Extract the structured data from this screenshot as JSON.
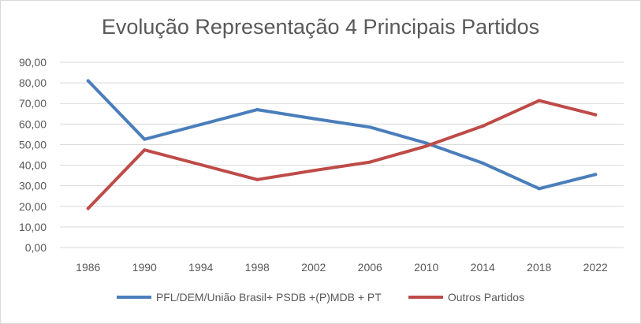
{
  "chart_data": {
    "type": "line",
    "title": "Evolução Representação 4 Principais Partidos",
    "xlabel": "",
    "ylabel": "",
    "ylim": [
      0,
      90
    ],
    "ytick_step": 10,
    "y_tick_labels": [
      "0,00",
      "10,00",
      "20,00",
      "30,00",
      "40,00",
      "50,00",
      "60,00",
      "70,00",
      "80,00",
      "90,00"
    ],
    "categories": [
      "1986",
      "1990",
      "1994",
      "1998",
      "2002",
      "2006",
      "2010",
      "2014",
      "2018",
      "2022"
    ],
    "grid": true,
    "legend": "bottom",
    "series": [
      {
        "name": "PFL/DEM/União Brasil+ PSDB +(P)MDB + PT",
        "color": "#4a7ebb",
        "values": [
          81.0,
          52.6,
          59.8,
          67.0,
          62.6,
          58.5,
          50.7,
          41.0,
          28.6,
          35.5
        ]
      },
      {
        "name": "Outros Partidos",
        "color": "#be4b48",
        "values": [
          19.0,
          47.4,
          40.2,
          33.0,
          37.4,
          41.5,
          49.3,
          59.0,
          71.4,
          64.5
        ]
      }
    ]
  }
}
